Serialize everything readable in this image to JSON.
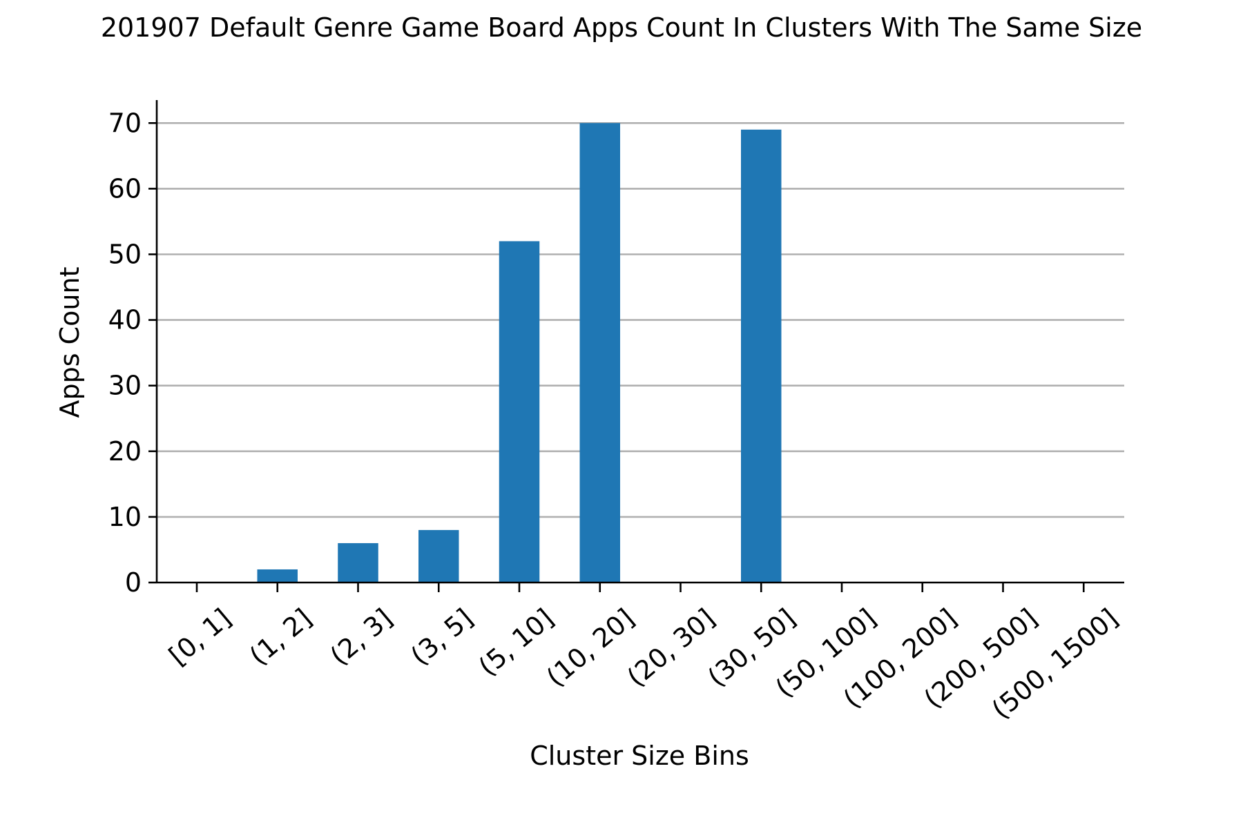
{
  "chart_data": {
    "type": "bar",
    "title": "201907 Default Genre Game Board Apps Count In Clusters With The Same Size",
    "xlabel": "Cluster Size Bins",
    "ylabel": "Apps Count",
    "categories": [
      "[0, 1]",
      "(1, 2]",
      "(2, 3]",
      "(3, 5]",
      "(5, 10]",
      "(10, 20]",
      "(20, 30]",
      "(30, 50]",
      "(50, 100]",
      "(100, 200]",
      "(200, 500]",
      "(500, 1500]"
    ],
    "values": [
      0,
      2,
      6,
      8,
      52,
      70,
      0,
      69,
      0,
      0,
      0,
      0
    ],
    "ylim": [
      0,
      73.5
    ],
    "yticks": [
      0,
      10,
      20,
      30,
      40,
      50,
      60,
      70
    ],
    "grid": "horizontal",
    "bar_color": "#1f77b4",
    "grid_color": "#b0b0b0",
    "legend": "none"
  }
}
